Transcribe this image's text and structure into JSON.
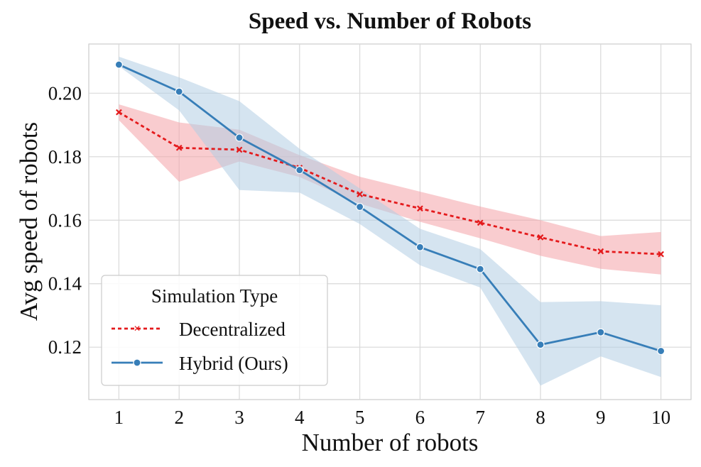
{
  "chart_data": {
    "type": "line",
    "title": "Speed vs. Number of Robots",
    "xlabel": "Number of robots",
    "ylabel": "Avg speed of robots",
    "x": [
      1,
      2,
      3,
      4,
      5,
      6,
      7,
      8,
      9,
      10
    ],
    "xlim": [
      0.5,
      10.5
    ],
    "ylim": [
      0.1035,
      0.2155
    ],
    "xticks": [
      1,
      2,
      3,
      4,
      5,
      6,
      7,
      8,
      9,
      10
    ],
    "xtick_labels": [
      "1",
      "2",
      "3",
      "4",
      "5",
      "6",
      "7",
      "8",
      "9",
      "10"
    ],
    "yticks": [
      0.12,
      0.14,
      0.16,
      0.18,
      0.2
    ],
    "ytick_labels": [
      "0.12",
      "0.14",
      "0.16",
      "0.18",
      "0.20"
    ],
    "grid": true,
    "legend": {
      "title": "Simulation Type",
      "placement": "lower-left"
    },
    "series": [
      {
        "name": "Decentralized",
        "color": "#e41a1c",
        "band_color": "#f4a3a8",
        "line_style": "dashed",
        "marker": "x",
        "values": [
          0.194,
          0.1828,
          0.1822,
          0.1765,
          0.1682,
          0.1637,
          0.1592,
          0.1546,
          0.1502,
          0.1493
        ],
        "lower": [
          0.1915,
          0.1721,
          0.1785,
          0.1736,
          0.1652,
          0.1595,
          0.1543,
          0.1488,
          0.1447,
          0.1429
        ],
        "upper": [
          0.1965,
          0.1908,
          0.1885,
          0.1805,
          0.1737,
          0.169,
          0.1643,
          0.16,
          0.155,
          0.1563
        ]
      },
      {
        "name": "Hybrid (Ours)",
        "color": "#377eb8",
        "band_color": "#b3cde3",
        "line_style": "solid",
        "marker": "o",
        "values": [
          0.209,
          0.2005,
          0.186,
          0.1758,
          0.1642,
          0.1515,
          0.1446,
          0.1208,
          0.1247,
          0.1188
        ],
        "lower": [
          0.2085,
          0.1946,
          0.1695,
          0.1687,
          0.1588,
          0.1458,
          0.1388,
          0.1079,
          0.1171,
          0.1106
        ],
        "upper": [
          0.2115,
          0.205,
          0.1975,
          0.1825,
          0.17,
          0.1573,
          0.1509,
          0.1342,
          0.1345,
          0.1332
        ]
      }
    ]
  }
}
